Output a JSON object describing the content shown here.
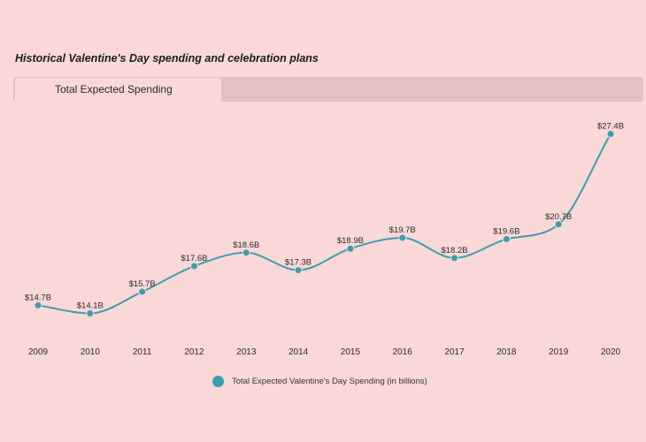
{
  "title": "Historical Valentine's Day spending and celebration plans",
  "tabs": [
    {
      "label": "Total Expected Spending"
    }
  ],
  "legend": {
    "label": "Total Expected Valentine's Day Spending (in billions)"
  },
  "colors": {
    "background": "#fbd8d8",
    "line": "#3a9eae",
    "tab_inactive": "#e4c0c1",
    "text": "#2a2a2a"
  },
  "chart_data": {
    "type": "line",
    "title": "Historical Valentine's Day spending and celebration plans",
    "xlabel": "",
    "ylabel": "",
    "ylim": [
      14,
      27.5
    ],
    "grid": false,
    "legend_position": "bottom-center",
    "categories": [
      "2009",
      "2010",
      "2011",
      "2012",
      "2013",
      "2014",
      "2015",
      "2016",
      "2017",
      "2018",
      "2019",
      "2020"
    ],
    "series": [
      {
        "name": "Total Expected Valentine's Day Spending (in billions)",
        "values": [
          14.7,
          14.1,
          15.7,
          17.6,
          18.6,
          17.3,
          18.9,
          19.7,
          18.2,
          19.6,
          20.7,
          27.4
        ],
        "labels": [
          "$14.7B",
          "$14.1B",
          "$15.7B",
          "$17.6B",
          "$18.6B",
          "$17.3B",
          "$18.9B",
          "$19.7B",
          "$18.2B",
          "$19.6B",
          "$20.7B",
          "$27.4B"
        ]
      }
    ]
  }
}
